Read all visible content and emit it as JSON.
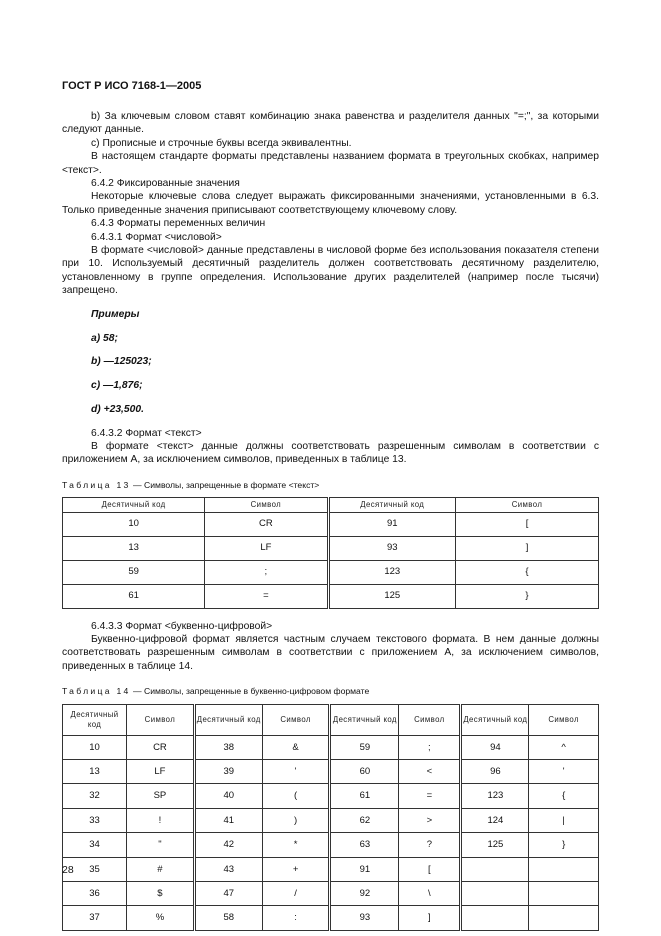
{
  "header": "ГОСТ Р ИСО 7168-1—2005",
  "paragraphs_top": [
    "b) За ключевым словом ставят комбинацию знака равенства и разделителя данных \"=;\", за которыми следуют данные.",
    "c) Прописные и строчные буквы всегда эквивалентны.",
    "В настоящем стандарте форматы представлены названием формата в треугольных скобках, например <текст>.",
    "6.4.2 Фиксированные значения",
    "Некоторые ключевые слова следует выражать фиксированными значениями, установленными в 6.3. Только приведенные значения приписывают соответствующему ключевому слову.",
    "6.4.3 Форматы переменных величин",
    "6.4.3.1 Формат <числовой>",
    "В формате <числовой> данные представлены в числовой форме без использования показателя степени при 10. Используемый десятичный разделитель должен соответствовать десятичному разделителю, установленному в группе определения. Использование других разделителей (например после тысячи) запрещено."
  ],
  "examples": [
    "Примеры",
    "a)  58;",
    "b)  —125023;",
    "c)  —1,876;",
    "d)  +23,500."
  ],
  "paragraphs_mid": [
    "6.4.3.2 Формат <текст>",
    "В формате <текст> данные должны соответствовать разрешенным символам в соответствии с приложением А, за исключением символов, приведенных в таблице 13."
  ],
  "table13": {
    "caption_prefix": "Таблица 13",
    "caption_text": " — Символы, запрещенные в формате <текст>",
    "headers": [
      "Десятичный код",
      "Символ",
      "Десятичный код",
      "Символ"
    ],
    "rows": [
      [
        "10",
        "CR",
        "91",
        "["
      ],
      [
        "13",
        "LF",
        "93",
        "]"
      ],
      [
        "59",
        ";",
        "123",
        "{"
      ],
      [
        "61",
        "=",
        "125",
        "}"
      ]
    ]
  },
  "paragraphs_after13": [
    "6.4.3.3 Формат <буквенно-цифровой>",
    "Буквенно-цифровой формат является частным случаем текстового формата. В нем данные должны соответствовать разрешенным символам в соответствии с приложением А, за исключением символов, приведенных в таблице 14."
  ],
  "table14": {
    "caption_prefix": "Таблица 14",
    "caption_text": " — Символы, запрещенные в буквенно-цифровом формате",
    "headers": [
      "Десятичный код",
      "Символ",
      "Десятичный код",
      "Символ",
      "Десятичный код",
      "Символ",
      "Десятичный код",
      "Символ"
    ],
    "rows": [
      [
        "10",
        "CR",
        "38",
        "&",
        "59",
        ";",
        "94",
        "^"
      ],
      [
        "13",
        "LF",
        "39",
        "'",
        "60",
        "<",
        "96",
        "'"
      ],
      [
        "32",
        "SP",
        "40",
        "(",
        "61",
        "=",
        "123",
        "{"
      ],
      [
        "33",
        "!",
        "41",
        ")",
        "62",
        ">",
        "124",
        "|"
      ],
      [
        "34",
        "\"",
        "42",
        "*",
        "63",
        "?",
        "125",
        "}"
      ],
      [
        "35",
        "#",
        "43",
        "+",
        "91",
        "[",
        "",
        ""
      ],
      [
        "36",
        "$",
        "47",
        "/",
        "92",
        "\\",
        "",
        ""
      ],
      [
        "37",
        "%",
        "58",
        ":",
        "93",
        "]",
        "",
        ""
      ]
    ]
  },
  "page_number": "28"
}
